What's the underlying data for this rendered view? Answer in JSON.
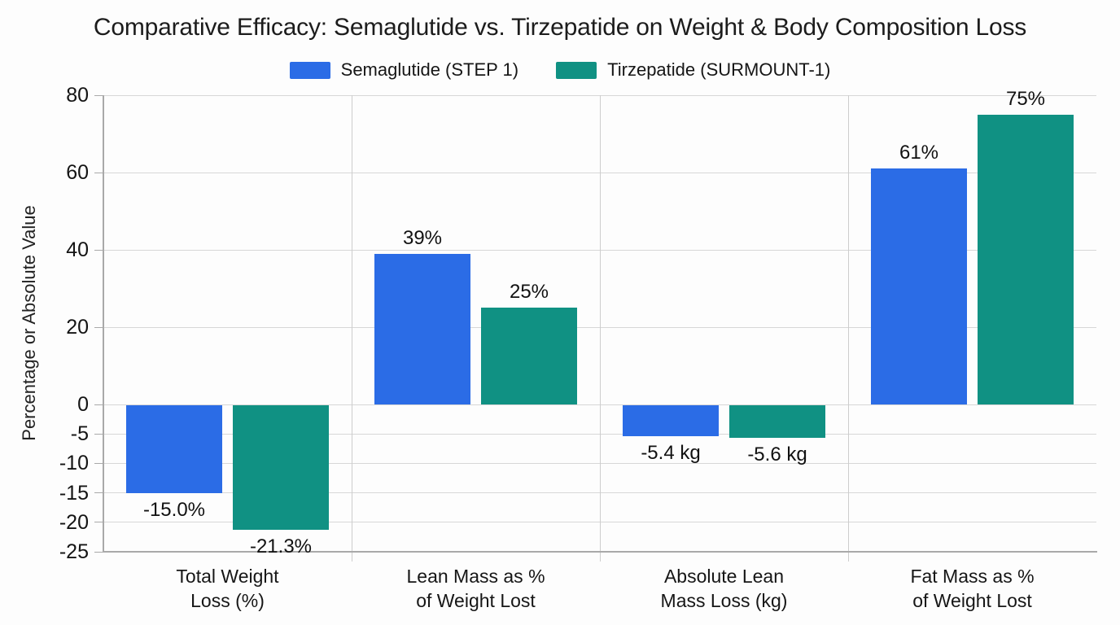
{
  "title": "Comparative Efficacy: Semaglutide vs. Tirzepatide on Weight & Body Composition Loss",
  "legend": {
    "items": [
      {
        "label": "Semaglutide (STEP 1)",
        "color": "#2b6ce6"
      },
      {
        "label": "Tirzepatide (SURMOUNT-1)",
        "color": "#109183"
      }
    ]
  },
  "y_axis_label": "Percentage or Absolute Value",
  "chart_data": {
    "type": "bar",
    "title": "Comparative Efficacy: Semaglutide vs. Tirzepatide on Weight & Body Composition Loss",
    "ylabel": "Percentage or Absolute Value",
    "xlabel": "",
    "categories": [
      "Total Weight Loss (%)",
      "Lean Mass as % of Weight Lost",
      "Absolute Lean Mass Loss (kg)",
      "Fat Mass as % of Weight Lost"
    ],
    "category_label_lines": [
      [
        "Total Weight",
        "Loss (%)"
      ],
      [
        "Lean Mass as %",
        "of Weight Lost"
      ],
      [
        "Absolute Lean",
        "Mass Loss (kg)"
      ],
      [
        "Fat Mass as %",
        "of Weight Lost"
      ]
    ],
    "series": [
      {
        "name": "Semaglutide (STEP 1)",
        "color": "#2b6ce6",
        "values": [
          -15.0,
          39,
          -5.4,
          61
        ],
        "labels": [
          "-15.0%",
          "39%",
          "-5.4 kg",
          "61%"
        ]
      },
      {
        "name": "Tirzepatide (SURMOUNT-1)",
        "color": "#109183",
        "values": [
          -21.3,
          25,
          -5.6,
          75
        ],
        "labels": [
          "-21.3%",
          "25%",
          "-5.6 kg",
          "75%"
        ]
      }
    ],
    "yticks": [
      80,
      60,
      40,
      20,
      0,
      -5,
      -10,
      -15,
      -20,
      -25
    ],
    "ylim": [
      -25,
      80
    ],
    "grid": true,
    "legend_position": "top",
    "scale_note": "broken y scale: negative region drawn expanded (5-unit steps) versus positive region (20-unit steps)"
  },
  "colors": {
    "grid": "#d7d7d7",
    "axis": "#a9a9a9",
    "separator": "#cdcdcd",
    "background": "#fdfdfd",
    "text": "#1b1b1b"
  }
}
